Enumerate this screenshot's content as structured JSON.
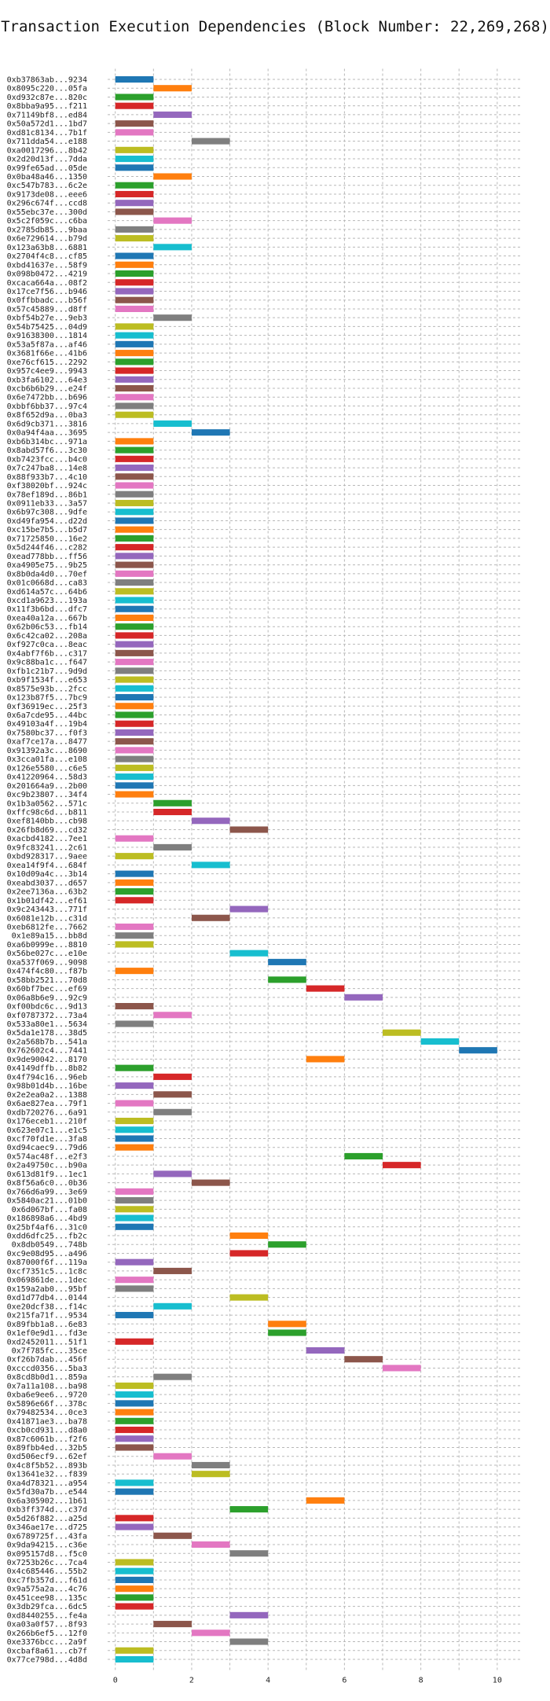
{
  "chart_data": {
    "type": "bar",
    "orientation": "horizontal",
    "title": "Transaction Execution Dependencies (Block Number: 22,269,268)",
    "xlabel": "",
    "ylabel": "",
    "xlim": [
      -0.2,
      10.6
    ],
    "xticks": [
      "0",
      "2",
      "4",
      "6",
      "8",
      "10"
    ],
    "grid": true,
    "legend": "none",
    "palette": [
      "#1f77b4",
      "#ff7f0e",
      "#2ca02c",
      "#d62728",
      "#9467bd",
      "#8c564b",
      "#e377c2",
      "#7f7f7f",
      "#bcbd22",
      "#17becf"
    ],
    "bars": [
      {
        "label": "0xb37863ab...9234",
        "start": 0
      },
      {
        "label": "0x8095c220...05fa",
        "start": 1
      },
      {
        "label": "0xd932c87e...820c",
        "start": 0
      },
      {
        "label": "0x8bba9a95...f211",
        "start": 0
      },
      {
        "label": "0x71149bf8...ed84",
        "start": 1
      },
      {
        "label": "0x50a572d1...1bd7",
        "start": 0
      },
      {
        "label": "0xd81c8134...7b1f",
        "start": 0
      },
      {
        "label": "0x711dda54...e188",
        "start": 2
      },
      {
        "label": "0xa0017296...8b42",
        "start": 0
      },
      {
        "label": "0x2d20d13f...7dda",
        "start": 0
      },
      {
        "label": "0x99fe65ad...05de",
        "start": 0
      },
      {
        "label": "0x0ba48a46...1350",
        "start": 1
      },
      {
        "label": "0xc547b783...6c2e",
        "start": 0
      },
      {
        "label": "0x9173de08...eee6",
        "start": 0
      },
      {
        "label": "0x296c674f...ccd8",
        "start": 0
      },
      {
        "label": "0x55ebc37e...300d",
        "start": 0
      },
      {
        "label": "0x5c2f059c...c6ba",
        "start": 1
      },
      {
        "label": "0x2785db85...9baa",
        "start": 0
      },
      {
        "label": "0x6e729614...b79d",
        "start": 0
      },
      {
        "label": "0x123a63b8...6881",
        "start": 1
      },
      {
        "label": "0x2704f4c8...cf85",
        "start": 0
      },
      {
        "label": "0xbd41637e...58f9",
        "start": 0
      },
      {
        "label": "0x098b0472...4219",
        "start": 0
      },
      {
        "label": "0xcaca664a...08f2",
        "start": 0
      },
      {
        "label": "0x17ce7f56...b946",
        "start": 0
      },
      {
        "label": "0x0ffbbadc...b56f",
        "start": 0
      },
      {
        "label": "0x57c45889...d8ff",
        "start": 0
      },
      {
        "label": "0xbf54b27e...9eb3",
        "start": 1
      },
      {
        "label": "0x54b75425...04d9",
        "start": 0
      },
      {
        "label": "0x91638300...1814",
        "start": 0
      },
      {
        "label": "0x53a5f87a...af46",
        "start": 0
      },
      {
        "label": "0x3681f66e...41b6",
        "start": 0
      },
      {
        "label": "0xe76cf615...2292",
        "start": 0
      },
      {
        "label": "0x957c4ee9...9943",
        "start": 0
      },
      {
        "label": "0xb3fa6102...64e3",
        "start": 0
      },
      {
        "label": "0xcb6b6b29...e24f",
        "start": 0
      },
      {
        "label": "0x6e7472bb...b696",
        "start": 0
      },
      {
        "label": "0xbbf6bb37...97c4",
        "start": 0
      },
      {
        "label": "0x8f652d9a...0ba3",
        "start": 0
      },
      {
        "label": "0x6d9cb371...3816",
        "start": 1
      },
      {
        "label": "0x0a94f4aa...3695",
        "start": 2
      },
      {
        "label": "0xb6b314bc...971a",
        "start": 0
      },
      {
        "label": "0x8abd57f6...3c30",
        "start": 0
      },
      {
        "label": "0xb7423fcc...b4c0",
        "start": 0
      },
      {
        "label": "0x7c247ba8...14e8",
        "start": 0
      },
      {
        "label": "0x88f933b7...4c10",
        "start": 0
      },
      {
        "label": "0xf38020bf...924c",
        "start": 0
      },
      {
        "label": "0x78ef189d...86b1",
        "start": 0
      },
      {
        "label": "0x0911eb33...3a57",
        "start": 0
      },
      {
        "label": "0x6b97c308...9dfe",
        "start": 0
      },
      {
        "label": "0xd49fa954...d22d",
        "start": 0
      },
      {
        "label": "0xc15be7b5...b5d7",
        "start": 0
      },
      {
        "label": "0x71725850...16e2",
        "start": 0
      },
      {
        "label": "0x5d244f46...c282",
        "start": 0
      },
      {
        "label": "0xead778bb...ff56",
        "start": 0
      },
      {
        "label": "0xa4905e75...9b25",
        "start": 0
      },
      {
        "label": "0x8b0da4d0...70ef",
        "start": 0
      },
      {
        "label": "0x01c0668d...ca83",
        "start": 0
      },
      {
        "label": "0xd614a57c...64b6",
        "start": 0
      },
      {
        "label": "0xcd1a9623...193a",
        "start": 0
      },
      {
        "label": "0x11f3b6bd...dfc7",
        "start": 0
      },
      {
        "label": "0xea40a12a...667b",
        "start": 0
      },
      {
        "label": "0x62b06c53...fb14",
        "start": 0
      },
      {
        "label": "0x6c42ca02...208a",
        "start": 0
      },
      {
        "label": "0xf927c0ca...8eac",
        "start": 0
      },
      {
        "label": "0x4abf7f6b...c317",
        "start": 0
      },
      {
        "label": "0x9c88ba1c...f647",
        "start": 0
      },
      {
        "label": "0xfb1c21b7...9d9d",
        "start": 0
      },
      {
        "label": "0xb9f1534f...e653",
        "start": 0
      },
      {
        "label": "0x8575e93b...2fcc",
        "start": 0
      },
      {
        "label": "0x123b87f5...7bc9",
        "start": 0
      },
      {
        "label": "0xf36919ec...25f3",
        "start": 0
      },
      {
        "label": "0x6a7cde95...44bc",
        "start": 0
      },
      {
        "label": "0x49103a4f...19b4",
        "start": 0
      },
      {
        "label": "0x7580bc37...f0f3",
        "start": 0
      },
      {
        "label": "0xaf7ce17a...8477",
        "start": 0
      },
      {
        "label": "0x91392a3c...8690",
        "start": 0
      },
      {
        "label": "0x3cca01fa...e108",
        "start": 0
      },
      {
        "label": "0x126e5580...c6e5",
        "start": 0
      },
      {
        "label": "0x41220964...58d3",
        "start": 0
      },
      {
        "label": "0x201664a9...2b00",
        "start": 0
      },
      {
        "label": "0xc9b23807...34f4",
        "start": 0
      },
      {
        "label": "0x1b3a0562...571c",
        "start": 1
      },
      {
        "label": "0xffc98c6d...b811",
        "start": 1
      },
      {
        "label": "0xef8140bb...cb98",
        "start": 2
      },
      {
        "label": "0x26fb8d69...cd32",
        "start": 3
      },
      {
        "label": "0xacbd4182...7ee1",
        "start": 0
      },
      {
        "label": "0x9fc83241...2c61",
        "start": 1
      },
      {
        "label": "0xbd928317...9aee",
        "start": 0
      },
      {
        "label": "0xea14f9f4...684f",
        "start": 2
      },
      {
        "label": "0x10d09a4c...3b14",
        "start": 0
      },
      {
        "label": "0xeabd3037...d657",
        "start": 0
      },
      {
        "label": "0x2ee7136a...63b2",
        "start": 0
      },
      {
        "label": "0x1b01df42...ef61",
        "start": 0
      },
      {
        "label": "0x9c243443...771f",
        "start": 3
      },
      {
        "label": "0x6081e12b...c31d",
        "start": 2
      },
      {
        "label": "0xeb6812fe...7662",
        "start": 0
      },
      {
        "label": "0x1e89a15...bb8d",
        "start": 0
      },
      {
        "label": "0xa6b0999e...8810",
        "start": 0
      },
      {
        "label": "0x56be027c...e10e",
        "start": 3
      },
      {
        "label": "0xa537f069...9098",
        "start": 4
      },
      {
        "label": "0x474f4c80...f87b",
        "start": 0
      },
      {
        "label": "0x58bb2521...70d8",
        "start": 4
      },
      {
        "label": "0x60bf7bec...ef69",
        "start": 5
      },
      {
        "label": "0x06a8b6e9...92c9",
        "start": 6
      },
      {
        "label": "0xf00bdc6c...9d13",
        "start": 0
      },
      {
        "label": "0xf0787372...73a4",
        "start": 1
      },
      {
        "label": "0x533a80e1...5634",
        "start": 0
      },
      {
        "label": "0x5da1e178...38d5",
        "start": 7
      },
      {
        "label": "0x2a568b7b...541a",
        "start": 8
      },
      {
        "label": "0x762602c4...7441",
        "start": 9
      },
      {
        "label": "0x9de90042...8170",
        "start": 5
      },
      {
        "label": "0x4149dffb...8b82",
        "start": 0
      },
      {
        "label": "0x4f794c16...96eb",
        "start": 1
      },
      {
        "label": "0x98b01d4b...16be",
        "start": 0
      },
      {
        "label": "0x2e2ea0a2...1388",
        "start": 1
      },
      {
        "label": "0x6ae827ea...79f1",
        "start": 0
      },
      {
        "label": "0xdb720276...6a91",
        "start": 1
      },
      {
        "label": "0x176eceb1...210f",
        "start": 0
      },
      {
        "label": "0x623e07c1...e1c5",
        "start": 0
      },
      {
        "label": "0xcf70fd1e...3fa8",
        "start": 0
      },
      {
        "label": "0xd94caec9...79d6",
        "start": 0
      },
      {
        "label": "0x574ac48f...e2f3",
        "start": 6
      },
      {
        "label": "0x2a49750c...b90a",
        "start": 7
      },
      {
        "label": "0x613d81f9...1ec1",
        "start": 1
      },
      {
        "label": "0x8f56a6c0...0b36",
        "start": 2
      },
      {
        "label": "0x766d6a99...3e69",
        "start": 0
      },
      {
        "label": "0x5840ac21...01b0",
        "start": 0
      },
      {
        "label": "0x6d067bf...fa08",
        "start": 0
      },
      {
        "label": "0x186898a6...4bd9",
        "start": 0
      },
      {
        "label": "0x25bf4af6...31c0",
        "start": 0
      },
      {
        "label": "0xdd6dfc25...fb2c",
        "start": 3
      },
      {
        "label": "0x8db0549...748b",
        "start": 4
      },
      {
        "label": "0xc9e08d95...a496",
        "start": 3
      },
      {
        "label": "0x87000f6f...119a",
        "start": 0
      },
      {
        "label": "0xcf7351c5...1c8c",
        "start": 1
      },
      {
        "label": "0x069861de...1dec",
        "start": 0
      },
      {
        "label": "0x159a2ab0...95bf",
        "start": 0
      },
      {
        "label": "0xd1d77db4...0144",
        "start": 3
      },
      {
        "label": "0xe20dcf38...f14c",
        "start": 1
      },
      {
        "label": "0x215fa71f...9534",
        "start": 0
      },
      {
        "label": "0x89fbb1a8...6e83",
        "start": 4
      },
      {
        "label": "0x1ef0e9d1...fd3e",
        "start": 4
      },
      {
        "label": "0xd2452011...51f1",
        "start": 0
      },
      {
        "label": "0x7f785fc...35ce",
        "start": 5
      },
      {
        "label": "0xf26b7dab...456f",
        "start": 6
      },
      {
        "label": "0xcccd0356...5ba3",
        "start": 7
      },
      {
        "label": "0x8cd8b0d1...859a",
        "start": 1
      },
      {
        "label": "0x7a11a108...ba98",
        "start": 0
      },
      {
        "label": "0xba6e9ee6...9720",
        "start": 0
      },
      {
        "label": "0x5896e66f...378c",
        "start": 0
      },
      {
        "label": "0x79482534...0ce3",
        "start": 0
      },
      {
        "label": "0x41871ae3...ba78",
        "start": 0
      },
      {
        "label": "0xcb0cd931...d8a0",
        "start": 0
      },
      {
        "label": "0x87c6061b...f2f6",
        "start": 0
      },
      {
        "label": "0x89fbb4ed...32b5",
        "start": 0
      },
      {
        "label": "0xd506ecf9...62ef",
        "start": 1
      },
      {
        "label": "0x4c8f5b52...893b",
        "start": 2
      },
      {
        "label": "0x13641e32...f839",
        "start": 2
      },
      {
        "label": "0xa4d78321...a954",
        "start": 0
      },
      {
        "label": "0x5fd30a7b...e544",
        "start": 0
      },
      {
        "label": "0x6a305902...1b61",
        "start": 5
      },
      {
        "label": "0xb3ff374d...c37d",
        "start": 3
      },
      {
        "label": "0x5d26f882...a25d",
        "start": 0
      },
      {
        "label": "0x346ae17e...d725",
        "start": 0
      },
      {
        "label": "0x6789725f...43fa",
        "start": 1
      },
      {
        "label": "0x9da94215...c36e",
        "start": 2
      },
      {
        "label": "0x095157d8...f5c0",
        "start": 3
      },
      {
        "label": "0x7253b26c...7ca4",
        "start": 0
      },
      {
        "label": "0x4c685446...55b2",
        "start": 0
      },
      {
        "label": "0xc7fb357d...f61d",
        "start": 0
      },
      {
        "label": "0x9a575a2a...4c76",
        "start": 0
      },
      {
        "label": "0x451cee98...135c",
        "start": 0
      },
      {
        "label": "0x3db29fca...6dc5",
        "start": 0
      },
      {
        "label": "0xd8440255...fe4a",
        "start": 3
      },
      {
        "label": "0xa03a0f57...8f93",
        "start": 1
      },
      {
        "label": "0x266b6ef5...12f0",
        "start": 2
      },
      {
        "label": "0xe3376bcc...2a9f",
        "start": 3
      },
      {
        "label": "0xcbaf8a61...cb7f",
        "start": 0
      },
      {
        "label": "0x77ce798d...4d8d",
        "start": 0
      }
    ]
  }
}
